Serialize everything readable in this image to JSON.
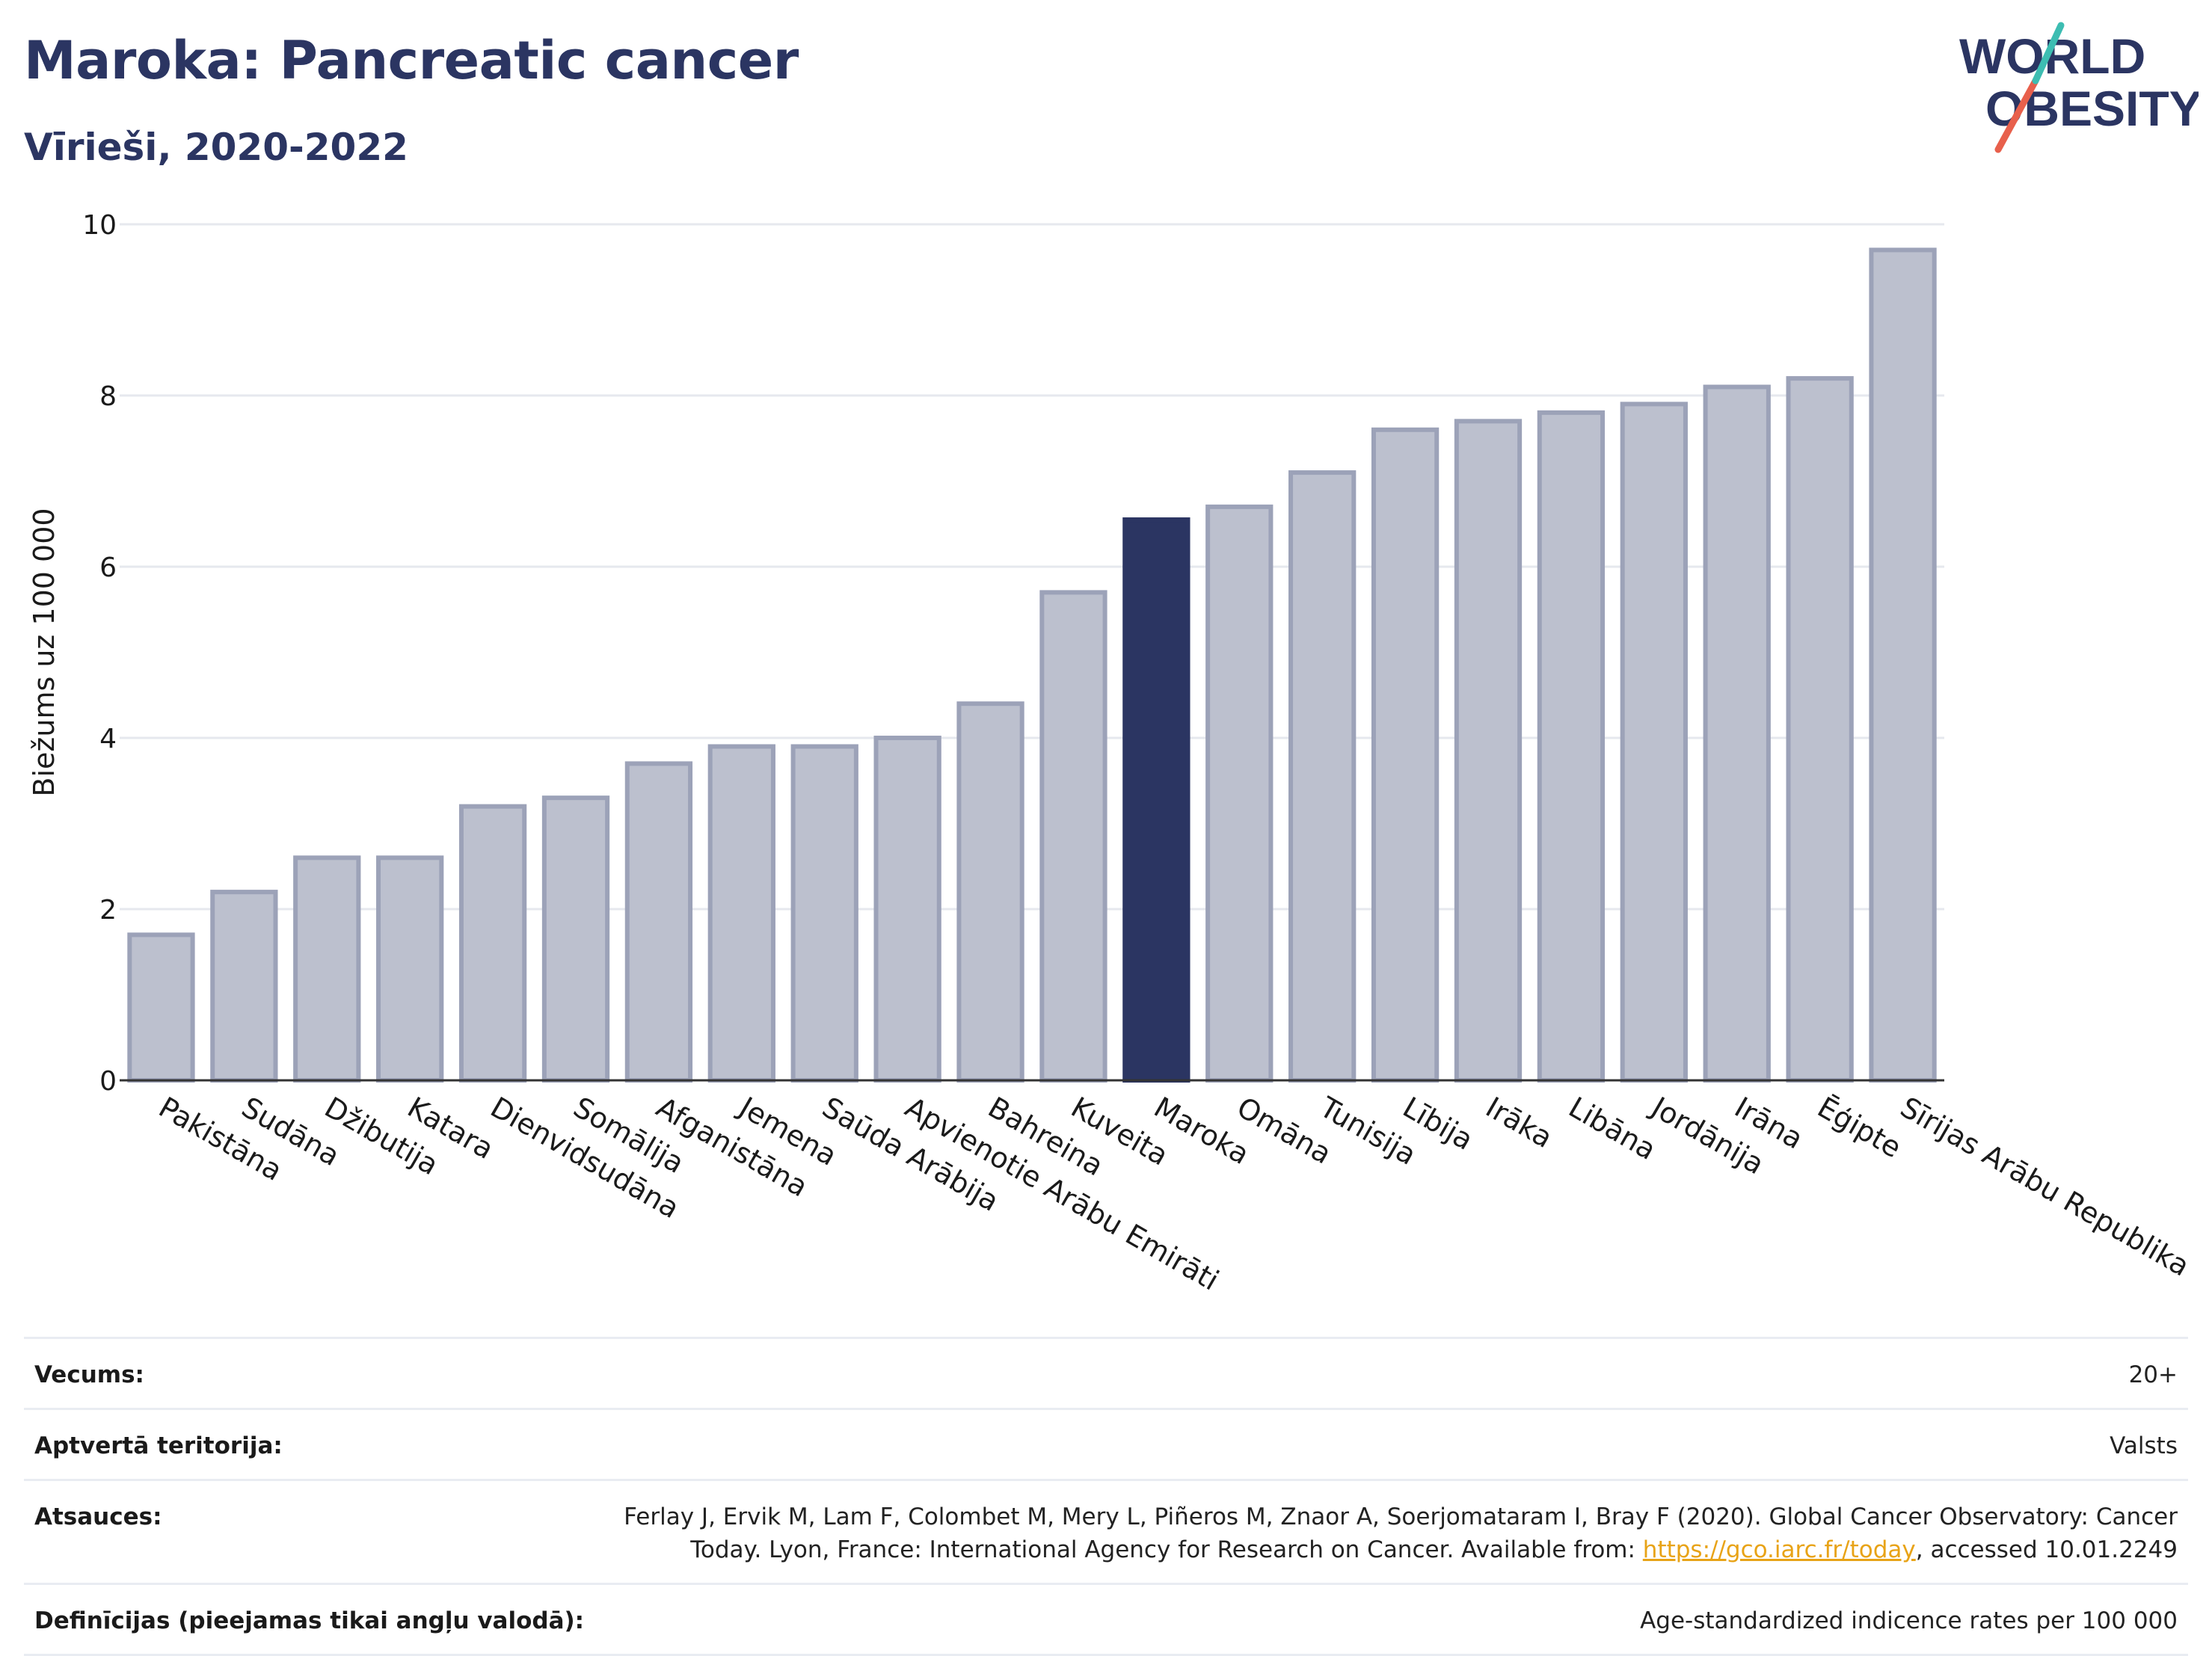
{
  "header": {
    "title": "Maroka: Pancreatic cancer",
    "subtitle": "Vīrieši, 2020-2022"
  },
  "logo": {
    "line1": "WORLD",
    "line2": "OBESITY"
  },
  "colors": {
    "bar": "#bcc0ce",
    "bar_border": "#9ca2b8",
    "highlight": "#2b3562",
    "grid": "#e6e8ee",
    "text": "#1a1a1a"
  },
  "chart_data": {
    "type": "bar",
    "title": "",
    "xlabel": "",
    "ylabel": "Biežums uz 100 000",
    "ylim": [
      0,
      10
    ],
    "yticks": [
      0,
      2,
      4,
      6,
      8,
      10
    ],
    "grid": true,
    "highlight": "Maroka",
    "categories": [
      "Pakistāna",
      "Sudāna",
      "Džibutija",
      "Katara",
      "Dienvidsudāna",
      "Somālija",
      "Afganistāna",
      "Jemena",
      "Saūda Arābija",
      "Apvienotie Arābu Emirāti",
      "Bahreina",
      "Kuveita",
      "Maroka",
      "Omāna",
      "Tunisija",
      "Lībija",
      "Irāka",
      "Libāna",
      "Jordānija",
      "Irāna",
      "Ēģipte",
      "Sīrijas Arābu Republika"
    ],
    "values": [
      1.7,
      2.2,
      2.6,
      2.6,
      3.2,
      3.3,
      3.7,
      3.9,
      3.9,
      4.0,
      4.4,
      5.7,
      6.55,
      6.7,
      7.1,
      7.6,
      7.7,
      7.8,
      7.9,
      8.1,
      8.2,
      9.7
    ]
  },
  "meta": [
    {
      "label": "Vecums:",
      "value": "20+"
    },
    {
      "label": "Aptvertā teritorija:",
      "value": "Valsts"
    },
    {
      "label": "Atsauces:",
      "value_line1": "Ferlay J, Ervik M, Lam F, Colombet M, Mery L, Piñeros M, Znaor A, Soerjomataram I, Bray F (2020). Global Cancer Observatory: Cancer",
      "value_line2_pre": "Today. Lyon, France: International Agency for Research on Cancer. Available from: ",
      "link": "https://gco.iarc.fr/today",
      "value_line2_post": ", accessed 10.01.2249"
    },
    {
      "label": "Definīcijas (pieejamas tikai angļu valodā):",
      "value": "Age-standardized indicence rates per 100 000"
    }
  ]
}
